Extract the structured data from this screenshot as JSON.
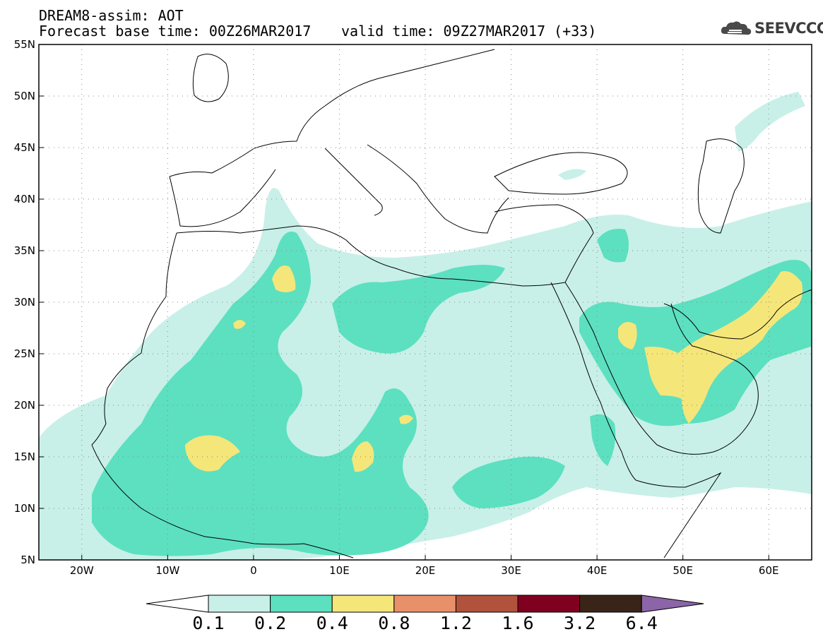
{
  "header": {
    "model_title": "DREAM8-assim: AOT",
    "base_time": "Forecast base time: 00Z26MAR2017",
    "valid_time": "valid time: 09Z27MAR2017 (+33)",
    "logo_text": "SEEVCCC"
  },
  "map": {
    "lat_labels": [
      "55N",
      "50N",
      "45N",
      "40N",
      "35N",
      "30N",
      "25N",
      "20N",
      "15N",
      "10N",
      "5N"
    ],
    "lon_labels": [
      "20W",
      "10W",
      "0",
      "10E",
      "20E",
      "30E",
      "40E",
      "50E",
      "60E"
    ],
    "extent": {
      "lon_min": -25,
      "lon_max": 65,
      "lat_min": 5,
      "lat_max": 55
    }
  },
  "colorbar": {
    "labels": [
      "0.1",
      "0.2",
      "0.4",
      "0.8",
      "1.2",
      "1.6",
      "3.2",
      "6.4"
    ],
    "colors": [
      "#c8f0e8",
      "#5ce0c0",
      "#f5e67a",
      "#e8906a",
      "#b0523c",
      "#800020",
      "#3a2418",
      "#8c64a8"
    ]
  },
  "colors": {
    "low": "#c8f0e8",
    "mid": "#5ce0c0",
    "high": "#f5e67a"
  }
}
